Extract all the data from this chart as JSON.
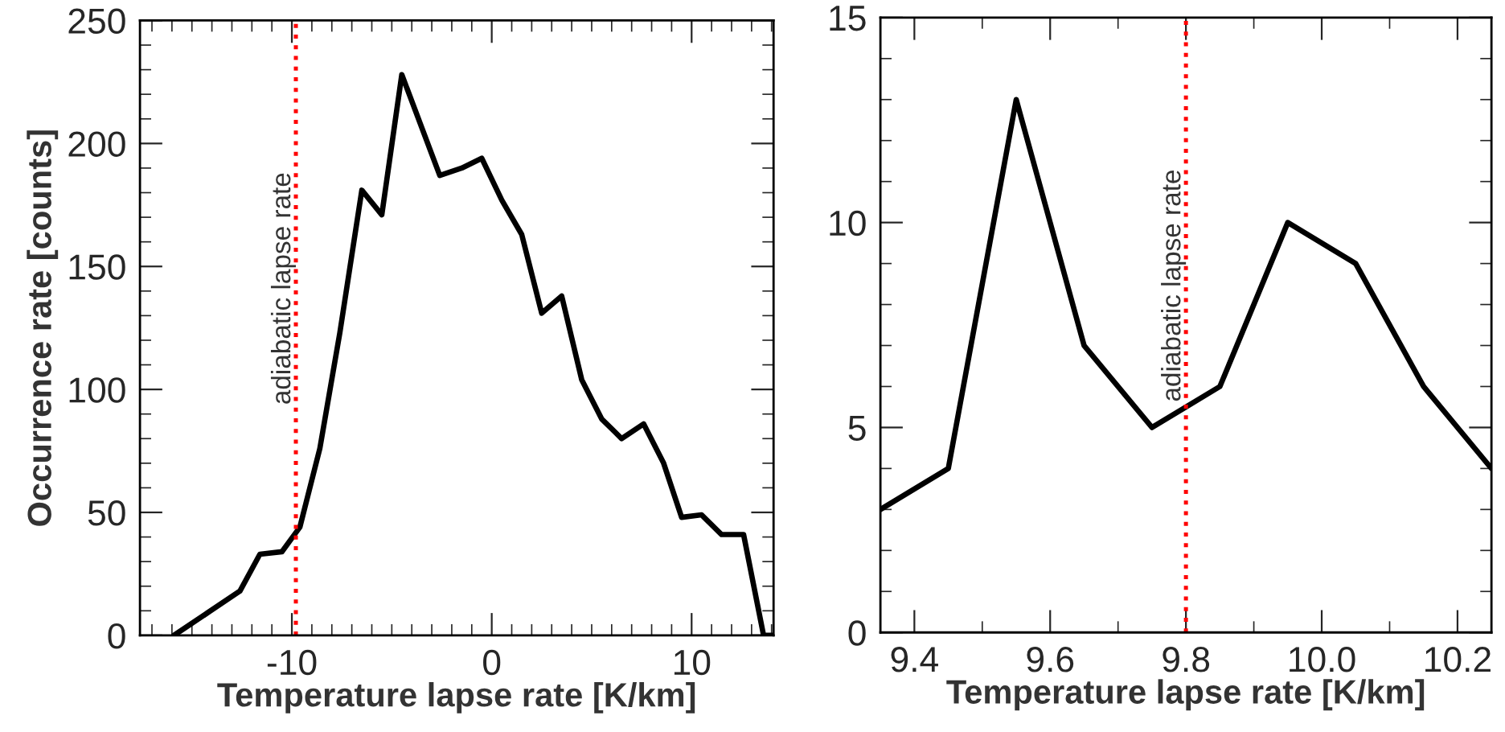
{
  "chart_data": [
    {
      "type": "line",
      "xlabel": "Temperature lapse rate [K/km]",
      "ylabel": "Occurrence rate [counts]",
      "x": [
        -15.9,
        -12.6,
        -11.6,
        -10.5,
        -9.6,
        -8.6,
        -7.6,
        -6.5,
        -5.5,
        -4.5,
        -2.6,
        -1.5,
        -0.5,
        0.5,
        1.5,
        2.5,
        3.5,
        4.5,
        5.5,
        6.5,
        7.6,
        8.6,
        9.5,
        10.5,
        11.5,
        12.6,
        13.6,
        14.1
      ],
      "series": [
        {
          "color": "#000000",
          "values": [
            0,
            18,
            33,
            34,
            44,
            76,
            123,
            181,
            171,
            228,
            187,
            190,
            194,
            177,
            163,
            131,
            138,
            104,
            88,
            80,
            86,
            70,
            48,
            49,
            41,
            41,
            0,
            0
          ]
        }
      ],
      "xlim": [
        -17.6,
        14.1
      ],
      "xticks": [
        -10,
        0,
        10
      ],
      "ylim": [
        0,
        250
      ],
      "yticks": [
        0,
        50,
        100,
        150,
        200,
        250
      ],
      "ref_lines": [
        {
          "axis": "x",
          "value": -9.8,
          "label": "adiabatic lapse rate",
          "color": "#ff0000",
          "line_style": "dotted"
        }
      ],
      "grid": false,
      "marker": "none",
      "line_style": "solid"
    },
    {
      "type": "line",
      "xlabel": "Temperature lapse rate [K/km]",
      "x": [
        9.35,
        9.45,
        9.55,
        9.65,
        9.75,
        9.85,
        9.95,
        10.05,
        10.15,
        10.25
      ],
      "series": [
        {
          "color": "#000000",
          "values": [
            3,
            4,
            13,
            7,
            5,
            6,
            10,
            9,
            6,
            4
          ]
        }
      ],
      "xlim": [
        9.35,
        10.25
      ],
      "xticks": [
        {
          "value": 9.4,
          "label": "9.4"
        },
        {
          "value": 9.6,
          "label": "9.6"
        },
        {
          "value": 9.8,
          "label": "9.8"
        },
        {
          "value": 10.0,
          "label": "10.0"
        },
        {
          "value": 10.2,
          "label": "10.2"
        }
      ],
      "ylim": [
        0,
        15
      ],
      "yticks": [
        0,
        5,
        10,
        15
      ],
      "ref_lines": [
        {
          "axis": "x",
          "value": 9.8,
          "label": "adiabatic lapse rate",
          "color": "#ff0000",
          "line_style": "dotted"
        }
      ],
      "grid": false,
      "marker": "none",
      "line_style": "solid"
    }
  ]
}
